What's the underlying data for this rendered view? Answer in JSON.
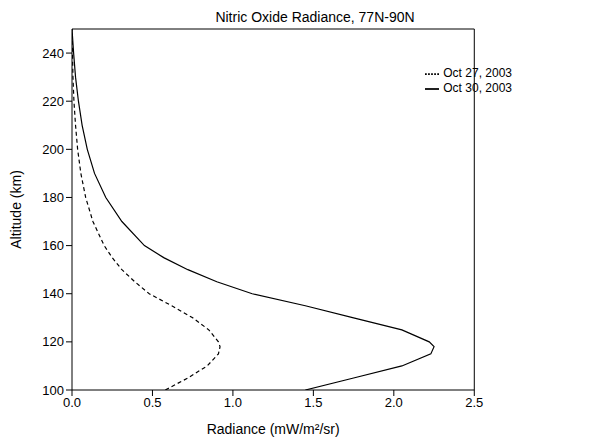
{
  "chart_data": {
    "type": "line",
    "title": "Nitric Oxide Radiance, 77N-90N",
    "x_label": "Radiance (mW/m²/sr)",
    "y_label": "Altitude (km)",
    "xlim": [
      0,
      2.5
    ],
    "xticks": [
      {
        "value": 0,
        "label": "0.0"
      },
      0.5,
      {
        "value": 1,
        "label": "1.0"
      },
      1.5,
      {
        "value": 2,
        "label": "2.0"
      },
      2.5
    ],
    "ylim": [
      100,
      250
    ],
    "yticks": [
      100,
      120,
      140,
      160,
      180,
      200,
      220,
      240
    ],
    "grid": false,
    "legend": "upper right",
    "series": [
      {
        "name": "Oct 30, 2003",
        "color": "#000000",
        "line_style": "solid",
        "x": [
          1.45,
          1.75,
          2.05,
          2.23,
          2.25,
          2.22,
          2.05,
          1.75,
          1.45,
          1.12,
          0.9,
          0.72,
          0.57,
          0.45,
          0.31,
          0.21,
          0.14,
          0.095,
          0.063,
          0.04,
          0.022,
          0.01,
          0.0
        ],
        "y": [
          100,
          105,
          110,
          115,
          118,
          120,
          125,
          130,
          135,
          140,
          145,
          150,
          155,
          160,
          170,
          180,
          190,
          200,
          210,
          220,
          230,
          240,
          250
        ]
      },
      {
        "name": "Oct 27, 2003",
        "color": "#000000",
        "line_style": "dashed",
        "x": [
          0.58,
          0.72,
          0.84,
          0.91,
          0.92,
          0.91,
          0.85,
          0.75,
          0.62,
          0.48,
          0.39,
          0.31,
          0.25,
          0.2,
          0.13,
          0.085,
          0.055,
          0.035,
          0.022,
          0.012,
          0.006,
          0.003,
          0.0
        ],
        "y": [
          100,
          105,
          110,
          115,
          118,
          120,
          125,
          130,
          135,
          140,
          145,
          150,
          155,
          160,
          170,
          180,
          190,
          200,
          210,
          220,
          230,
          240,
          250
        ]
      }
    ]
  }
}
